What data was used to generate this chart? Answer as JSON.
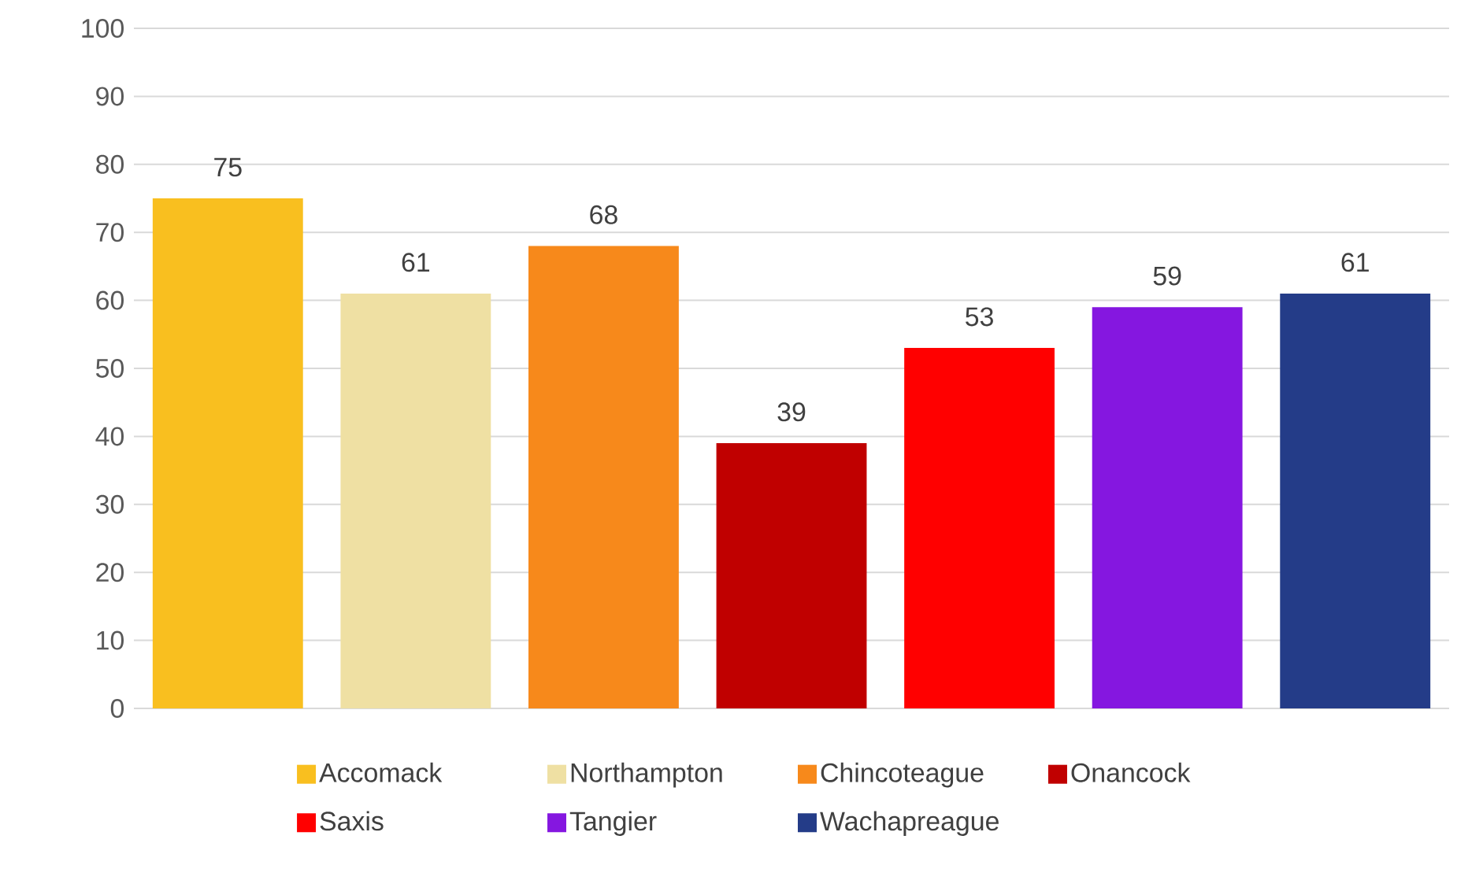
{
  "chart_data": {
    "type": "bar",
    "categories": [
      null,
      null,
      null,
      null,
      null,
      null,
      null
    ],
    "series": [
      {
        "name": "Accomack",
        "color": "#f9bf1f",
        "values": [
          75,
          null,
          null,
          null,
          null,
          null,
          null
        ]
      },
      {
        "name": "Northampton",
        "color": "#efe0a3",
        "values": [
          null,
          61,
          null,
          null,
          null,
          null,
          null
        ]
      },
      {
        "name": "Chincoteague",
        "color": "#f7891b",
        "values": [
          null,
          null,
          68,
          null,
          null,
          null,
          null
        ]
      },
      {
        "name": "Onancock",
        "color": "#c00000",
        "values": [
          null,
          null,
          null,
          39,
          null,
          null,
          null
        ]
      },
      {
        "name": "Saxis",
        "color": "#ff0000",
        "values": [
          null,
          null,
          null,
          null,
          53,
          null,
          null
        ]
      },
      {
        "name": "Tangier",
        "color": "#8517e0",
        "values": [
          null,
          null,
          null,
          null,
          null,
          59,
          null
        ]
      },
      {
        "name": "Wachapreague",
        "color": "#243c88",
        "values": [
          null,
          null,
          null,
          null,
          null,
          null,
          61
        ]
      }
    ],
    "ylim": [
      0,
      100
    ],
    "yticks": [
      0,
      10,
      20,
      30,
      40,
      50,
      60,
      70,
      80,
      90,
      100
    ],
    "grid": "y",
    "legend": "bottom",
    "data_labels": true
  }
}
